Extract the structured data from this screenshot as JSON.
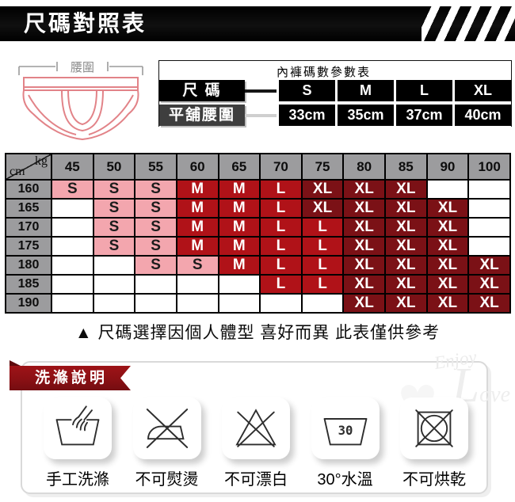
{
  "banner": {
    "title": "尺碼對照表"
  },
  "illustration": {
    "measure_label": "腰圍"
  },
  "param_table": {
    "title": "內褲碼數參數表",
    "size_row": {
      "label": "尺 碼",
      "values": [
        "S",
        "M",
        "L",
        "XL"
      ]
    },
    "waist_row": {
      "label": "平舖腰圍",
      "values": [
        "33cm",
        "35cm",
        "37cm",
        "40cm"
      ]
    }
  },
  "size_grid": {
    "corner": {
      "top_right": "kg",
      "bottom_left": "cm"
    },
    "weight_columns": [
      "45",
      "50",
      "55",
      "60",
      "65",
      "70",
      "75",
      "80",
      "85",
      "90",
      "100"
    ],
    "rows": [
      {
        "height": "160",
        "cells": [
          "S",
          "S",
          "S",
          "M",
          "M",
          "L",
          "XL",
          "XL",
          "XL",
          "",
          ""
        ]
      },
      {
        "height": "165",
        "cells": [
          "",
          "S",
          "S",
          "M",
          "M",
          "L",
          "XL",
          "XL",
          "XL",
          "XL",
          ""
        ]
      },
      {
        "height": "170",
        "cells": [
          "",
          "S",
          "S",
          "M",
          "M",
          "L",
          "L",
          "XL",
          "XL",
          "XL",
          ""
        ]
      },
      {
        "height": "175",
        "cells": [
          "",
          "S",
          "S",
          "M",
          "M",
          "L",
          "L",
          "XL",
          "XL",
          "XL",
          ""
        ]
      },
      {
        "height": "180",
        "cells": [
          "",
          "",
          "S",
          "S",
          "M",
          "L",
          "L",
          "XL",
          "XL",
          "XL",
          "XL"
        ]
      },
      {
        "height": "185",
        "cells": [
          "",
          "",
          "",
          "",
          "",
          "L",
          "L",
          "XL",
          "XL",
          "XL",
          "XL"
        ]
      },
      {
        "height": "190",
        "cells": [
          "",
          "",
          "",
          "",
          "",
          "",
          "",
          "XL",
          "XL",
          "XL",
          "XL"
        ]
      }
    ],
    "colors": {
      "S": "#f3a6ae",
      "M": "#b01218",
      "L": "#b01218",
      "XL": "#7b1116",
      "header": "#9c9c9e",
      "S_text": "#1c1c1c",
      "sized_text": "#ffffff"
    }
  },
  "note": "▲ 尺碼選擇因個人體型 喜好而異 此表僅供參考",
  "wash_section": {
    "ribbon_title": "洗滌說明",
    "watermark": {
      "word1": "Enjoy",
      "big_letter": "L",
      "word2_rest": "ove"
    },
    "items": [
      {
        "icon": "hand-wash-icon",
        "label": "手工洗滌"
      },
      {
        "icon": "no-iron-icon",
        "label": "不可熨燙"
      },
      {
        "icon": "no-bleach-icon",
        "label": "不可漂白"
      },
      {
        "icon": "water-temp-30-icon",
        "label": "30°水溫",
        "temp": "30"
      },
      {
        "icon": "no-tumble-dry-icon",
        "label": "不可烘乾"
      }
    ]
  }
}
